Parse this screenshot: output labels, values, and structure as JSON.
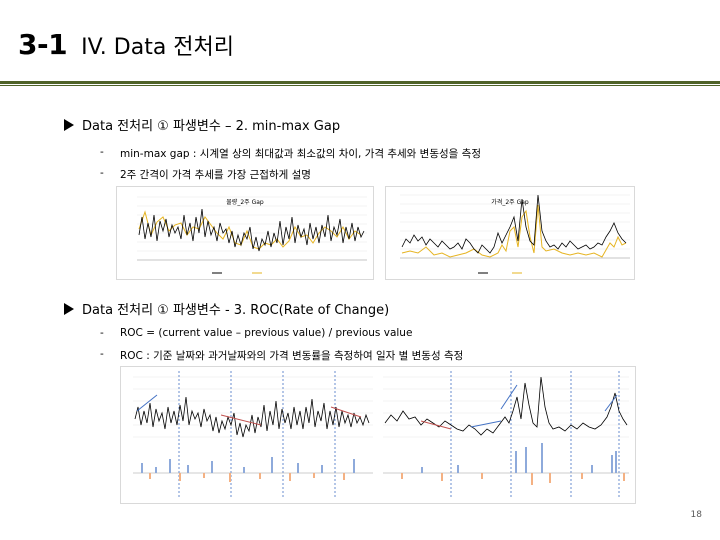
{
  "header": {
    "number": "3-1",
    "title": "IV. Data 전처리"
  },
  "section1": {
    "heading": "Data 전처리 ① 파생변수 – 2. min-max Gap",
    "bullets": [
      {
        "dash": "-",
        "text": "min-max gap : 시계열 상의 최대값과 최소값의 차이, 가격 추세와 변동성을 측정"
      },
      {
        "dash": "-",
        "text": "2주 간격이 가격 추세를 가장 근접하게 설명"
      }
    ]
  },
  "section2": {
    "heading": "Data 전처리 ① 파생변수 - 3. ROC(Rate of Change)",
    "bullets": [
      {
        "dash": "-",
        "text": "ROC   = (current value – previous value) / previous value"
      },
      {
        "dash": "-",
        "text": "ROC : 기준 날짜와 과거날짜와의 가격 변동률을 측정하여 일자 별 변동성 측정"
      }
    ]
  },
  "charts": {
    "gap_volume": {
      "title": "물량_2주 Gap"
    },
    "gap_price": {
      "title": "가격_2주 Gap"
    }
  },
  "colors": {
    "rule": "#4f6228",
    "black_series": "#000000",
    "gold_series": "#e6b422",
    "arrow_blue": "#4472c4",
    "arrow_red": "#c0504d",
    "bar_blue": "#8eaadb",
    "bar_orange": "#f4b183"
  },
  "page_number": "18"
}
